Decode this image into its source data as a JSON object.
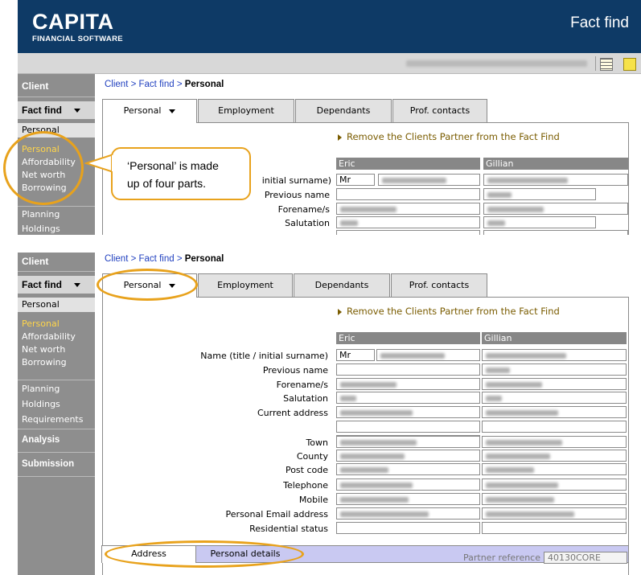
{
  "header": {
    "brand": "CAPITA",
    "brand_sub": "FINANCIAL SOFTWARE",
    "title": "Fact find"
  },
  "toolbar": {
    "icons": [
      "grid-icon",
      "note-icon"
    ]
  },
  "sidebar": {
    "client": "Client",
    "fact_find": "Fact find",
    "personal_header": "Personal",
    "personal_links": [
      "Personal",
      "Affordability",
      "Net worth",
      "Borrowing"
    ],
    "planning": "Planning",
    "holdings": "Holdings",
    "requirements": "Requirements",
    "analysis": "Analysis",
    "submission": "Submission"
  },
  "breadcrumb": {
    "client": "Client",
    "sep1": " > ",
    "fact_find": "Fact find",
    "sep2": " > ",
    "current": "Personal"
  },
  "tabs": [
    "Personal",
    "Employment",
    "Dependants",
    "Prof. contacts"
  ],
  "remove_partner": "Remove the Clients Partner from the Fact Find",
  "columns": [
    "Eric",
    "Gillian"
  ],
  "title_value": "Mr",
  "fields_top": [
    "initial surname)",
    "Previous name",
    "Forename/s",
    "Salutation"
  ],
  "fields": [
    "Name  (title / initial surname)",
    "Previous name",
    "Forename/s",
    "Salutation",
    "Current address",
    "",
    "",
    "Town",
    "County",
    "Post code",
    "Telephone",
    "Mobile",
    "Personal Email address",
    "Residential status"
  ],
  "callout": {
    "line1": "‘Personal’ is made",
    "line2": "up of four parts."
  },
  "sub_tabs": [
    "Address",
    "Personal details"
  ],
  "partner_reference": {
    "label": "Partner reference",
    "value": "40130CORE"
  }
}
